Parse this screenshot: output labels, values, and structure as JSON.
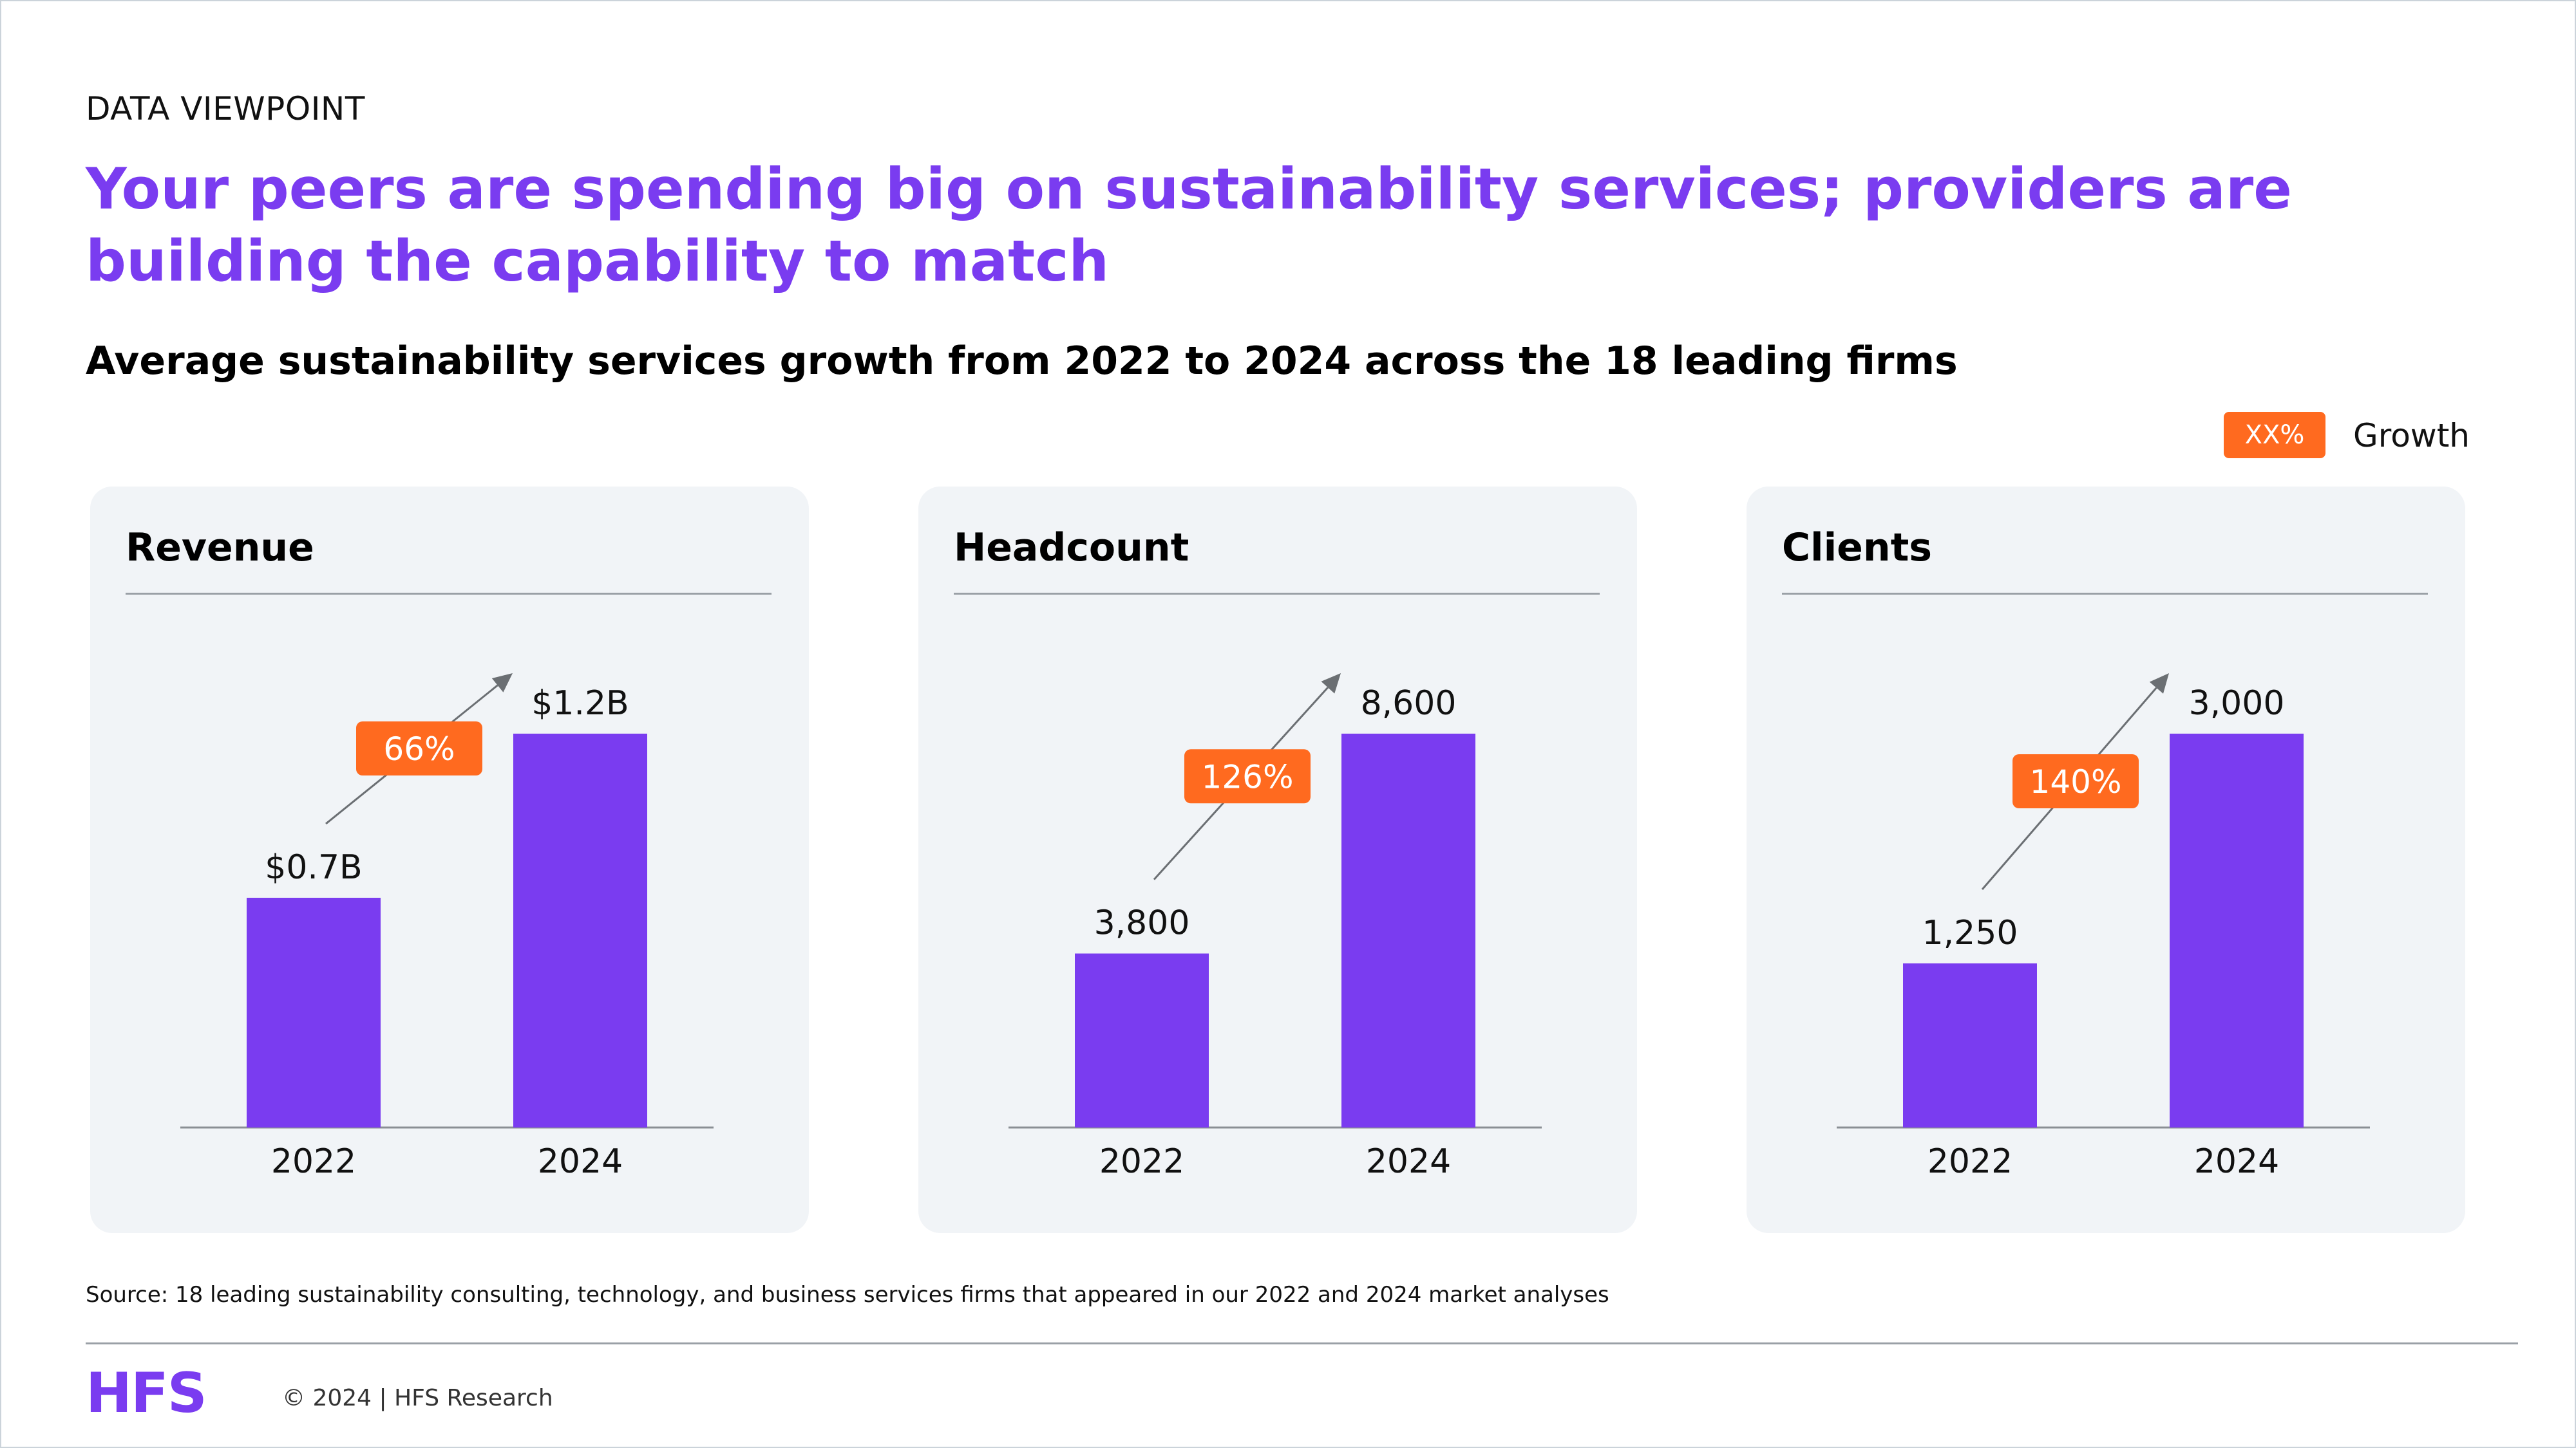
{
  "eyebrow": "DATA VIEWPOINT",
  "headline": "Your peers are spending big on sustainability services; providers are building the capability to match",
  "subtitle": "Average sustainability services growth from 2022 to 2024 across the 18 leading firms",
  "legend": {
    "swatch_text": "XX%",
    "label": "Growth",
    "color": "#ff6a1f"
  },
  "colors": {
    "bar": "#7a3cf0",
    "growth_badge": "#ff6a1f",
    "panel_bg": "#f1f4f7"
  },
  "chart_data": [
    {
      "type": "bar",
      "title": "Revenue",
      "categories": [
        "2022",
        "2024"
      ],
      "values": [
        0.7,
        1.2
      ],
      "value_labels": [
        "$0.7B",
        "$1.2B"
      ],
      "growth": "66%"
    },
    {
      "type": "bar",
      "title": "Headcount",
      "categories": [
        "2022",
        "2024"
      ],
      "values": [
        3800,
        8600
      ],
      "value_labels": [
        "3,800",
        "8,600"
      ],
      "growth": "126%"
    },
    {
      "type": "bar",
      "title": "Clients",
      "categories": [
        "2022",
        "2024"
      ],
      "values": [
        1250,
        3000
      ],
      "value_labels": [
        "1,250",
        "3,000"
      ],
      "growth": "140%"
    }
  ],
  "source": "Source: 18 leading sustainability consulting, technology, and business services firms that appeared in our 2022 and 2024 market analyses",
  "footer": {
    "logo": "HFS",
    "copyright": "© 2024 | HFS Research"
  }
}
